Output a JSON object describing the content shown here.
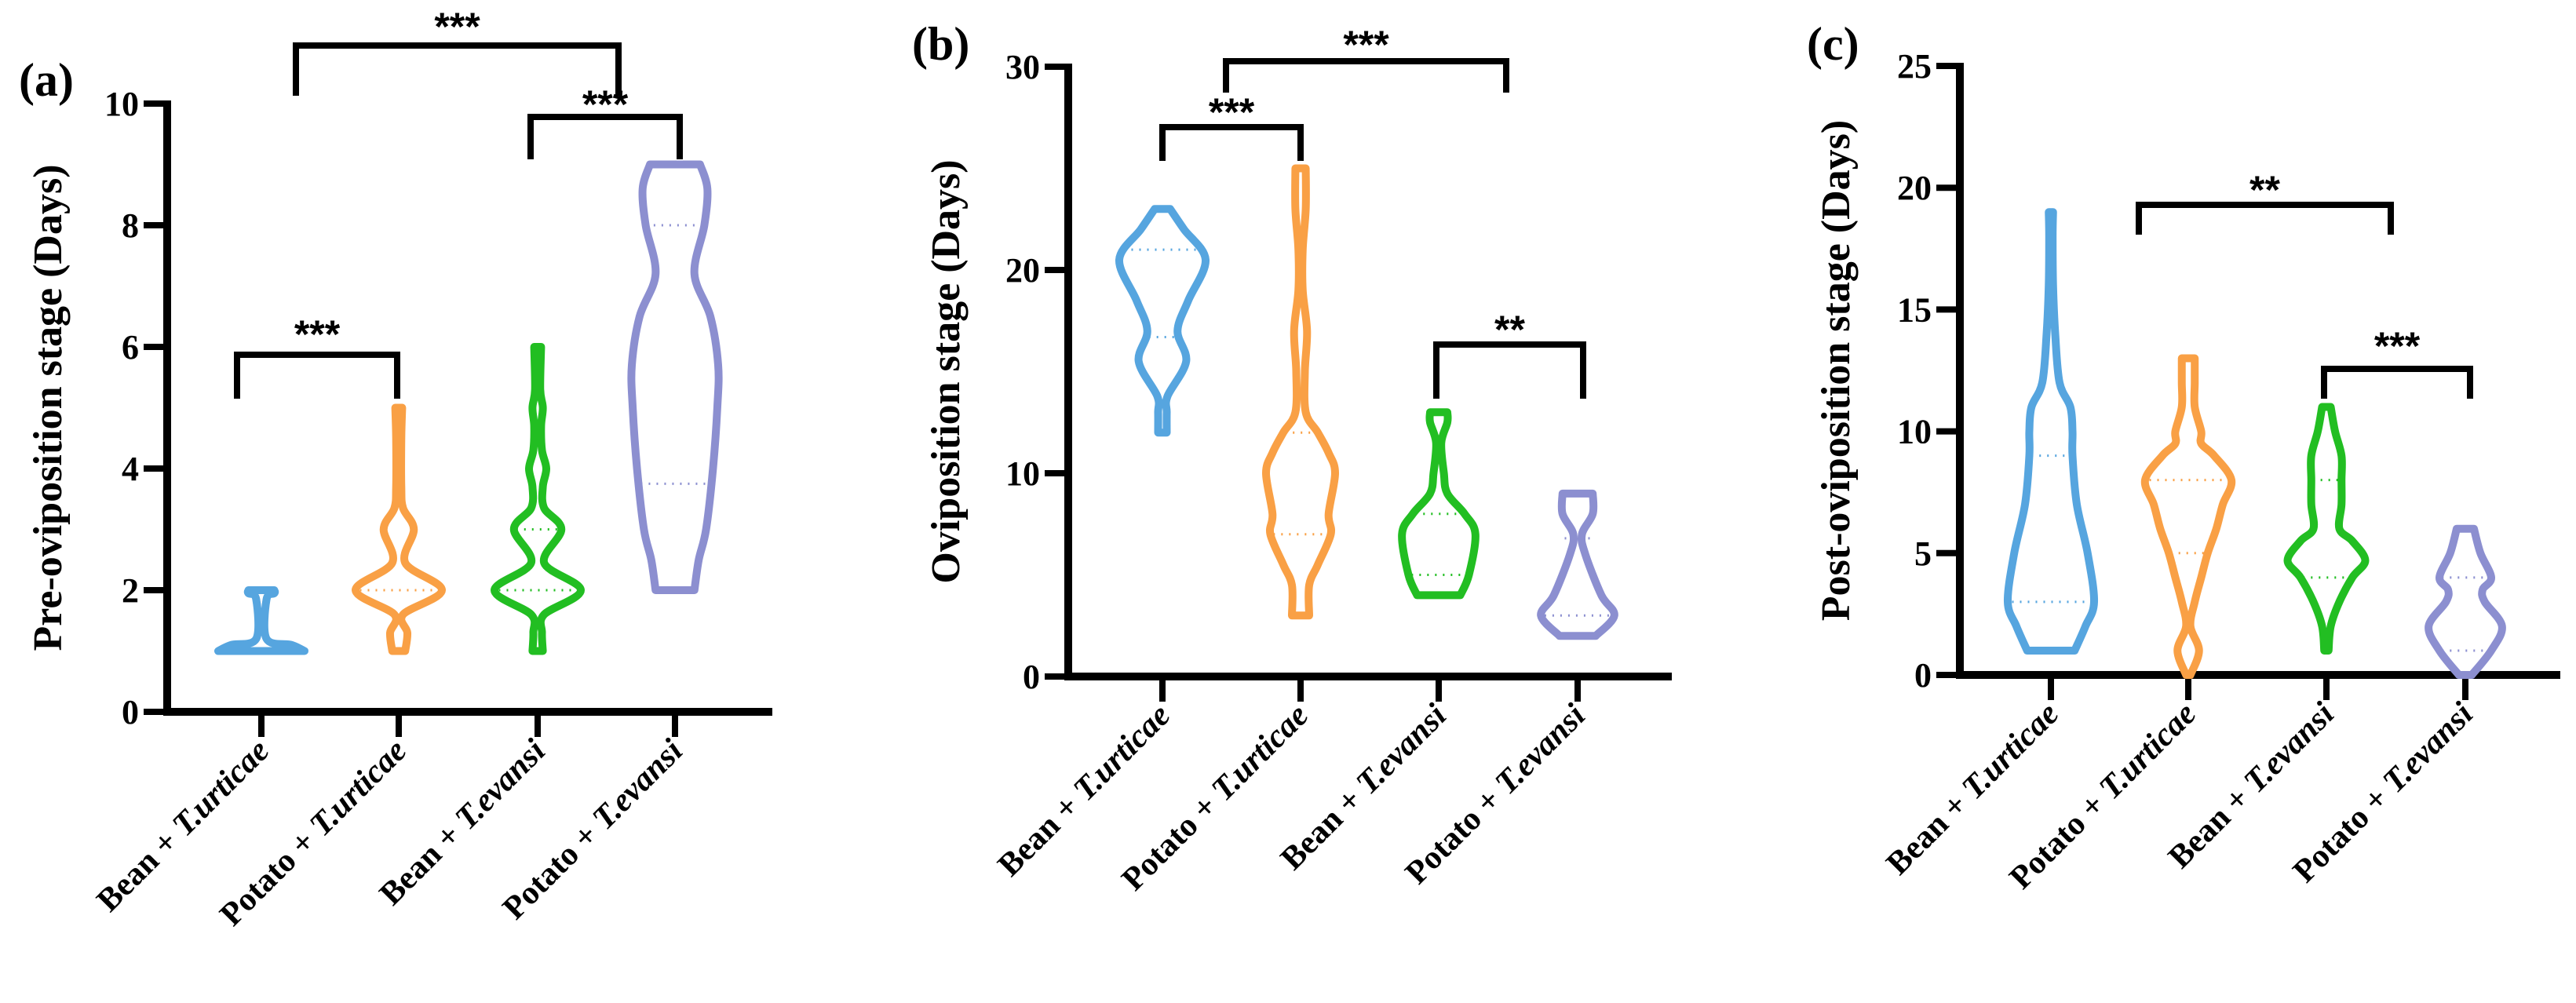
{
  "chart_data": [
    {
      "type": "violin",
      "panel_label": "(a)",
      "ylabel": "Pre-oviposition stage (Days)",
      "ylim": [
        0,
        10
      ],
      "yticks": [
        "0",
        "2",
        "4",
        "6",
        "8",
        "10"
      ],
      "categories": [
        {
          "prefix": "Bean + ",
          "species": "T.urticae"
        },
        {
          "prefix": "Potato + ",
          "species": "T.urticae"
        },
        {
          "prefix": "Bean + ",
          "species": "T.evansi"
        },
        {
          "prefix": "Potato + ",
          "species": "T.evansi"
        }
      ],
      "colors": [
        "#56A5DF",
        "#F9A045",
        "#22BE22",
        "#8C8FD0"
      ],
      "violins": [
        {
          "min": 1,
          "max": 2,
          "quartile_lines": [],
          "density": [
            [
              1,
              1.0
            ],
            [
              1.1,
              0.7
            ],
            [
              1.2,
              0.12
            ],
            [
              1.85,
              0.12
            ],
            [
              1.95,
              0.3
            ],
            [
              2,
              0.3
            ]
          ]
        },
        {
          "min": 1,
          "max": 5,
          "quartile_lines": [
            2
          ],
          "density": [
            [
              1,
              0.15
            ],
            [
              1.3,
              0.2
            ],
            [
              1.6,
              0.1
            ],
            [
              2,
              1.0
            ],
            [
              2.45,
              0.15
            ],
            [
              3,
              0.35
            ],
            [
              3.35,
              0.1
            ],
            [
              3.7,
              0.06
            ],
            [
              4.5,
              0.06
            ],
            [
              5,
              0.08
            ]
          ]
        },
        {
          "min": 1,
          "max": 6,
          "quartile_lines": [
            2,
            3
          ],
          "density": [
            [
              1,
              0.12
            ],
            [
              1.3,
              0.1
            ],
            [
              1.6,
              0.15
            ],
            [
              2,
              1.0
            ],
            [
              2.45,
              0.15
            ],
            [
              3,
              0.55
            ],
            [
              3.35,
              0.15
            ],
            [
              3.7,
              0.12
            ],
            [
              4,
              0.2
            ],
            [
              4.3,
              0.1
            ],
            [
              4.7,
              0.08
            ],
            [
              5,
              0.12
            ],
            [
              5.3,
              0.06
            ],
            [
              6,
              0.08
            ]
          ]
        },
        {
          "min": 2,
          "max": 9,
          "quartile_lines": [
            3.75,
            8
          ],
          "density": [
            [
              2,
              0.45
            ],
            [
              2.5,
              0.55
            ],
            [
              3,
              0.72
            ],
            [
              4,
              0.88
            ],
            [
              5,
              0.98
            ],
            [
              5.7,
              1.0
            ],
            [
              6.5,
              0.82
            ],
            [
              7.2,
              0.45
            ],
            [
              8,
              0.68
            ],
            [
              8.6,
              0.75
            ],
            [
              9,
              0.58
            ]
          ]
        }
      ],
      "significance": [
        {
          "label": "***"
        },
        {
          "label": "***"
        },
        {
          "label": "***"
        }
      ]
    },
    {
      "type": "violin",
      "panel_label": "(b)",
      "ylabel": "Oviposition stage (Days)",
      "ylim": [
        0,
        30
      ],
      "yticks": [
        "0",
        "10",
        "20",
        "30"
      ],
      "categories": [
        {
          "prefix": "Bean + ",
          "species": "T.urticae"
        },
        {
          "prefix": "Potato + ",
          "species": "T.urticae"
        },
        {
          "prefix": "Bean + ",
          "species": "T.evansi"
        },
        {
          "prefix": "Potato + ",
          "species": "T.evansi"
        }
      ],
      "colors": [
        "#56A5DF",
        "#F9A045",
        "#22BE22",
        "#8C8FD0"
      ],
      "violins": [
        {
          "min": 12,
          "max": 23,
          "quartile_lines": [
            16.7,
            21
          ],
          "density": [
            [
              12,
              0.1
            ],
            [
              13,
              0.1
            ],
            [
              13.8,
              0.12
            ],
            [
              15.5,
              0.55
            ],
            [
              17,
              0.35
            ],
            [
              18.5,
              0.6
            ],
            [
              20.5,
              1.0
            ],
            [
              22,
              0.5
            ],
            [
              23,
              0.18
            ]
          ]
        },
        {
          "min": 3,
          "max": 25,
          "quartile_lines": [
            7,
            12
          ],
          "density": [
            [
              3,
              0.2
            ],
            [
              4.5,
              0.2
            ],
            [
              5.5,
              0.4
            ],
            [
              7,
              0.7
            ],
            [
              8,
              0.65
            ],
            [
              10,
              0.8
            ],
            [
              11,
              0.65
            ],
            [
              12,
              0.4
            ],
            [
              13,
              0.12
            ],
            [
              15,
              0.1
            ],
            [
              17,
              0.15
            ],
            [
              19,
              0.05
            ],
            [
              21,
              0.05
            ],
            [
              23,
              0.12
            ],
            [
              25,
              0.12
            ]
          ]
        },
        {
          "min": 4,
          "max": 13,
          "quartile_lines": [
            5,
            8
          ],
          "density": [
            [
              4,
              0.5
            ],
            [
              5,
              0.7
            ],
            [
              7,
              0.85
            ],
            [
              8,
              0.6
            ],
            [
              9,
              0.2
            ],
            [
              10,
              0.12
            ],
            [
              11.5,
              0.06
            ],
            [
              12.5,
              0.2
            ],
            [
              13,
              0.2
            ]
          ]
        },
        {
          "min": 2,
          "max": 9,
          "quartile_lines": [
            3,
            6.8
          ],
          "density": [
            [
              2,
              0.42
            ],
            [
              3,
              0.85
            ],
            [
              4,
              0.55
            ],
            [
              6,
              0.18
            ],
            [
              7,
              0.1
            ],
            [
              8,
              0.35
            ],
            [
              9,
              0.35
            ]
          ]
        }
      ],
      "significance": [
        {
          "label": "***"
        },
        {
          "label": "***"
        },
        {
          "label": "**"
        }
      ]
    },
    {
      "type": "violin",
      "panel_label": "(c)",
      "ylabel": "Post-oviposition stage (Days)",
      "ylim": [
        0,
        25
      ],
      "yticks": [
        "0",
        "5",
        "10",
        "15",
        "20",
        "25"
      ],
      "categories": [
        {
          "prefix": "Bean + ",
          "species": "T.urticae"
        },
        {
          "prefix": "Potato + ",
          "species": "T.urticae"
        },
        {
          "prefix": "Bean + ",
          "species": "T.evansi"
        },
        {
          "prefix": "Potato + ",
          "species": "T.evansi"
        }
      ],
      "colors": [
        "#56A5DF",
        "#F9A045",
        "#22BE22",
        "#8C8FD0"
      ],
      "violins": [
        {
          "min": 1,
          "max": 19,
          "quartile_lines": [
            3,
            9
          ],
          "density": [
            [
              1,
              0.55
            ],
            [
              2,
              0.8
            ],
            [
              3,
              1.0
            ],
            [
              5,
              0.85
            ],
            [
              7,
              0.6
            ],
            [
              9,
              0.5
            ],
            [
              10,
              0.5
            ],
            [
              11,
              0.45
            ],
            [
              12,
              0.2
            ],
            [
              14,
              0.1
            ],
            [
              16,
              0.05
            ],
            [
              18,
              0.04
            ],
            [
              19,
              0.05
            ]
          ]
        },
        {
          "min": 0,
          "max": 13,
          "quartile_lines": [
            5,
            8
          ],
          "density": [
            [
              0,
              0.05
            ],
            [
              1,
              0.25
            ],
            [
              2,
              0.05
            ],
            [
              3,
              0.15
            ],
            [
              4,
              0.3
            ],
            [
              5,
              0.45
            ],
            [
              6,
              0.65
            ],
            [
              7,
              0.8
            ],
            [
              8,
              1.0
            ],
            [
              9,
              0.6
            ],
            [
              9.5,
              0.3
            ],
            [
              10,
              0.3
            ],
            [
              11,
              0.15
            ],
            [
              12,
              0.15
            ],
            [
              13,
              0.15
            ]
          ]
        },
        {
          "min": 1,
          "max": 11,
          "quartile_lines": [
            4,
            8
          ],
          "density": [
            [
              1,
              0.05
            ],
            [
              2,
              0.1
            ],
            [
              3,
              0.3
            ],
            [
              4,
              0.6
            ],
            [
              4.7,
              0.9
            ],
            [
              5.5,
              0.6
            ],
            [
              6,
              0.3
            ],
            [
              7,
              0.35
            ],
            [
              8,
              0.35
            ],
            [
              9,
              0.35
            ],
            [
              10,
              0.2
            ],
            [
              11,
              0.1
            ]
          ]
        },
        {
          "min": 0,
          "max": 6,
          "quartile_lines": [
            1,
            4
          ],
          "density": [
            [
              0,
              0.15
            ],
            [
              1,
              0.6
            ],
            [
              2,
              0.85
            ],
            [
              3,
              0.45
            ],
            [
              3.5,
              0.4
            ],
            [
              4,
              0.6
            ],
            [
              5,
              0.35
            ],
            [
              6,
              0.2
            ]
          ]
        }
      ],
      "significance": [
        {
          "label": "**"
        },
        {
          "label": "***"
        }
      ]
    }
  ]
}
